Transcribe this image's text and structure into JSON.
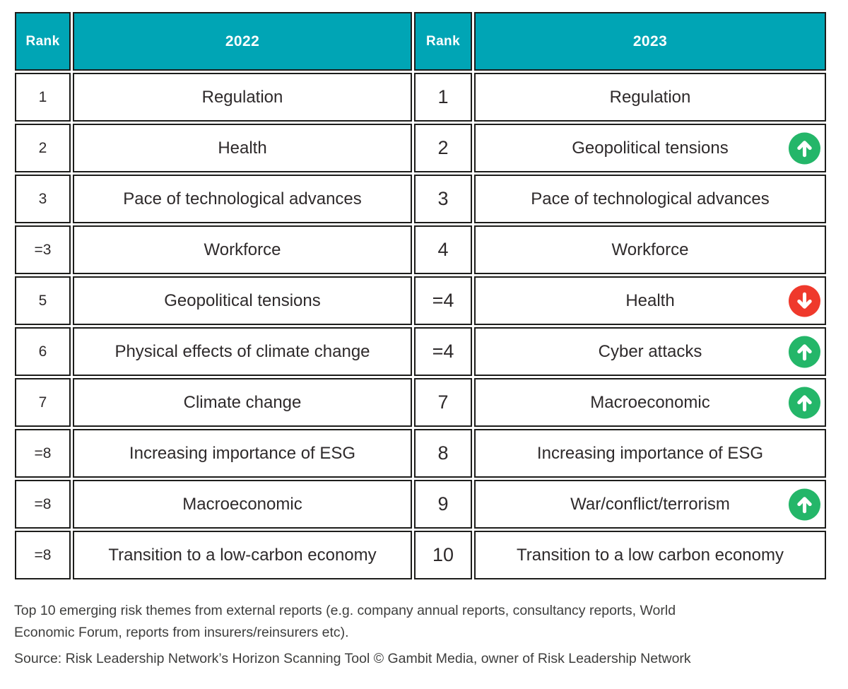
{
  "chart_data": {
    "type": "table",
    "headers": {
      "rank": "Rank",
      "year_2022": "2022",
      "year_2023": "2023"
    },
    "rows": [
      {
        "rank_2022": "1",
        "theme_2022": "Regulation",
        "rank_2023": "1",
        "theme_2023": "Regulation",
        "change_2023": "none"
      },
      {
        "rank_2022": "2",
        "theme_2022": "Health",
        "rank_2023": "2",
        "theme_2023": "Geopolitical tensions",
        "change_2023": "up"
      },
      {
        "rank_2022": "3",
        "theme_2022": "Pace of technological advances",
        "rank_2023": "3",
        "theme_2023": "Pace of technological advances",
        "change_2023": "none"
      },
      {
        "rank_2022": "=3",
        "theme_2022": "Workforce",
        "rank_2023": "4",
        "theme_2023": "Workforce",
        "change_2023": "none"
      },
      {
        "rank_2022": "5",
        "theme_2022": "Geopolitical tensions",
        "rank_2023": "=4",
        "theme_2023": "Health",
        "change_2023": "down"
      },
      {
        "rank_2022": "6",
        "theme_2022": "Physical effects of climate change",
        "rank_2023": "=4",
        "theme_2023": "Cyber attacks",
        "change_2023": "up"
      },
      {
        "rank_2022": "7",
        "theme_2022": "Climate change",
        "rank_2023": "7",
        "theme_2023": "Macroeconomic",
        "change_2023": "up"
      },
      {
        "rank_2022": "=8",
        "theme_2022": "Increasing importance of ESG",
        "rank_2023": "8",
        "theme_2023": "Increasing importance of ESG",
        "change_2023": "none"
      },
      {
        "rank_2022": "=8",
        "theme_2022": "Macroeconomic",
        "rank_2023": "9",
        "theme_2023": "War/conflict/terrorism",
        "change_2023": "up"
      },
      {
        "rank_2022": "=8",
        "theme_2022": "Transition to a low-carbon economy",
        "rank_2023": "10",
        "theme_2023": "Transition to a low carbon economy",
        "change_2023": "none"
      }
    ]
  },
  "footer": {
    "caption": "Top 10 emerging risk themes from external reports (e.g. company annual reports, consultancy reports, World Economic Forum, reports from insurers/reinsurers etc).",
    "source": "Source: Risk Leadership Network’s Horizon Scanning Tool © Gambit Media, owner of Risk Leadership Network"
  },
  "colors": {
    "header_bg": "#00a5b5",
    "header_text": "#ffffff",
    "up_arrow_green": "#24b669",
    "down_arrow_red": "#ef392c",
    "border": "#1d1d1b",
    "cell_text": "#2e2a2b"
  },
  "icons": {
    "up": "rank-up-icon",
    "down": "rank-down-icon"
  }
}
